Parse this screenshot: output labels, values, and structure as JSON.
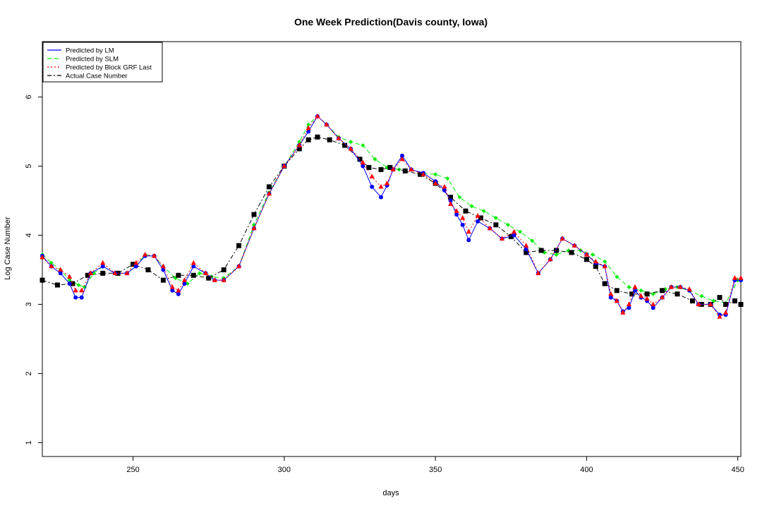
{
  "chart_data": {
    "type": "line",
    "title": "One Week Prediction(Davis county, Iowa)",
    "xlabel": "days",
    "ylabel": "Log Case Number",
    "xlim": [
      220,
      451
    ],
    "ylim": [
      0.8,
      6.8
    ],
    "x_ticks": [
      250,
      300,
      350,
      400,
      450
    ],
    "y_ticks": [
      1,
      2,
      3,
      4,
      5,
      6
    ],
    "legend_position": "top-left",
    "series": [
      {
        "name": "Predicted by LM",
        "color": "#0000ff",
        "line_style": "solid",
        "marker": "circle",
        "x": [
          220,
          223,
          226,
          229,
          231,
          233,
          236,
          240,
          244,
          248,
          251,
          254,
          257,
          260,
          263,
          265,
          267,
          270,
          274,
          277,
          280,
          285,
          290,
          295,
          300,
          305,
          308,
          311,
          314,
          318,
          322,
          326,
          329,
          332,
          334,
          336,
          339,
          342,
          346,
          350,
          353,
          355,
          357,
          359,
          361,
          364,
          368,
          372,
          376,
          380,
          384,
          388,
          392,
          396,
          400,
          403,
          406,
          408,
          410,
          412,
          414,
          416,
          418,
          420,
          422,
          425,
          428,
          431,
          434,
          437,
          441,
          444,
          446,
          449,
          451
        ],
        "y": [
          3.7,
          3.55,
          3.45,
          3.3,
          3.1,
          3.1,
          3.45,
          3.55,
          3.45,
          3.45,
          3.55,
          3.7,
          3.7,
          3.5,
          3.2,
          3.15,
          3.3,
          3.55,
          3.45,
          3.35,
          3.35,
          3.55,
          4.1,
          4.6,
          5.0,
          5.3,
          5.5,
          5.72,
          5.6,
          5.4,
          5.25,
          5.0,
          4.7,
          4.55,
          4.72,
          4.95,
          5.15,
          4.95,
          4.9,
          4.78,
          4.65,
          4.5,
          4.3,
          4.15,
          3.93,
          4.2,
          4.1,
          3.95,
          4.0,
          3.8,
          3.45,
          3.65,
          3.95,
          3.85,
          3.72,
          3.6,
          3.55,
          3.1,
          3.05,
          2.9,
          2.95,
          3.2,
          3.1,
          3.05,
          2.95,
          3.1,
          3.25,
          3.25,
          3.2,
          3.0,
          3.0,
          2.85,
          2.85,
          3.35,
          3.35
        ]
      },
      {
        "name": "Predicted by SLM",
        "color": "#00ee00",
        "line_style": "dashed",
        "marker": "diamond",
        "x": [
          220,
          223,
          226,
          229,
          232,
          234,
          237,
          240,
          244,
          248,
          251,
          254,
          257,
          260,
          264,
          268,
          272,
          276,
          280,
          285,
          290,
          295,
          300,
          305,
          308,
          311,
          314,
          318,
          322,
          326,
          330,
          334,
          338,
          342,
          346,
          350,
          354,
          358,
          362,
          366,
          370,
          374,
          378,
          382,
          386,
          390,
          394,
          398,
          402,
          406,
          410,
          414,
          418,
          422,
          426,
          430,
          434,
          438,
          442,
          446,
          450
        ],
        "y": [
          3.72,
          3.6,
          3.5,
          3.35,
          3.28,
          3.25,
          3.45,
          3.55,
          3.45,
          3.45,
          3.55,
          3.72,
          3.7,
          3.55,
          3.38,
          3.3,
          3.45,
          3.4,
          3.38,
          3.55,
          4.15,
          4.62,
          5.0,
          5.35,
          5.6,
          5.72,
          5.6,
          5.42,
          5.35,
          5.3,
          5.1,
          4.98,
          4.95,
          4.95,
          4.9,
          4.88,
          4.82,
          4.55,
          4.42,
          4.35,
          4.25,
          4.15,
          4.05,
          3.92,
          3.75,
          3.72,
          3.78,
          3.78,
          3.72,
          3.62,
          3.4,
          3.25,
          3.2,
          3.15,
          3.22,
          3.25,
          3.2,
          3.12,
          3.05,
          3.02,
          3.35
        ]
      },
      {
        "name": "Predicted by Block GRF Last",
        "color": "#ff0000",
        "line_style": "dotted",
        "marker": "triangle",
        "x": [
          220,
          223,
          226,
          229,
          231,
          233,
          236,
          240,
          244,
          248,
          251,
          254,
          257,
          260,
          263,
          265,
          267,
          270,
          274,
          277,
          280,
          285,
          290,
          295,
          300,
          305,
          308,
          311,
          314,
          318,
          322,
          326,
          329,
          332,
          334,
          336,
          339,
          342,
          346,
          350,
          353,
          355,
          357,
          359,
          361,
          364,
          368,
          372,
          376,
          380,
          384,
          388,
          392,
          396,
          400,
          403,
          406,
          408,
          410,
          412,
          414,
          416,
          418,
          420,
          422,
          425,
          428,
          431,
          434,
          437,
          441,
          444,
          446,
          449,
          451
        ],
        "y": [
          3.68,
          3.55,
          3.5,
          3.4,
          3.2,
          3.2,
          3.45,
          3.6,
          3.45,
          3.45,
          3.6,
          3.72,
          3.7,
          3.55,
          3.25,
          3.2,
          3.35,
          3.6,
          3.45,
          3.35,
          3.35,
          3.55,
          4.1,
          4.6,
          5.0,
          5.3,
          5.55,
          5.72,
          5.6,
          5.4,
          5.25,
          5.05,
          4.85,
          4.7,
          4.75,
          4.95,
          5.1,
          4.95,
          4.88,
          4.75,
          4.7,
          4.45,
          4.35,
          4.25,
          4.05,
          4.28,
          4.1,
          3.95,
          4.05,
          3.85,
          3.45,
          3.65,
          3.95,
          3.85,
          3.72,
          3.62,
          3.55,
          3.15,
          3.05,
          2.88,
          3.0,
          3.25,
          3.12,
          3.08,
          3.0,
          3.1,
          3.25,
          3.25,
          3.22,
          3.0,
          3.0,
          2.82,
          2.88,
          3.38,
          3.38
        ]
      },
      {
        "name": "Actual Case Number",
        "color": "#000000",
        "line_style": "dashdot",
        "marker": "square",
        "x": [
          220,
          225,
          230,
          235,
          240,
          245,
          250,
          255,
          260,
          265,
          270,
          275,
          280,
          285,
          290,
          295,
          300,
          305,
          308,
          311,
          315,
          320,
          325,
          328,
          332,
          335,
          340,
          345,
          350,
          355,
          360,
          365,
          370,
          375,
          380,
          385,
          390,
          395,
          400,
          403,
          406,
          410,
          415,
          420,
          425,
          430,
          435,
          438,
          441,
          444,
          446,
          449,
          451
        ],
        "y": [
          3.35,
          3.28,
          3.3,
          3.42,
          3.45,
          3.45,
          3.58,
          3.5,
          3.35,
          3.42,
          3.42,
          3.38,
          3.5,
          3.85,
          4.3,
          4.7,
          5.0,
          5.25,
          5.38,
          5.42,
          5.38,
          5.3,
          5.1,
          4.98,
          4.95,
          4.98,
          4.93,
          4.88,
          4.75,
          4.55,
          4.35,
          4.25,
          4.15,
          3.98,
          3.75,
          3.78,
          3.78,
          3.75,
          3.65,
          3.55,
          3.3,
          3.2,
          3.15,
          3.15,
          3.2,
          3.15,
          3.05,
          3.0,
          3.0,
          3.1,
          3.0,
          3.05,
          3.0
        ]
      }
    ]
  }
}
